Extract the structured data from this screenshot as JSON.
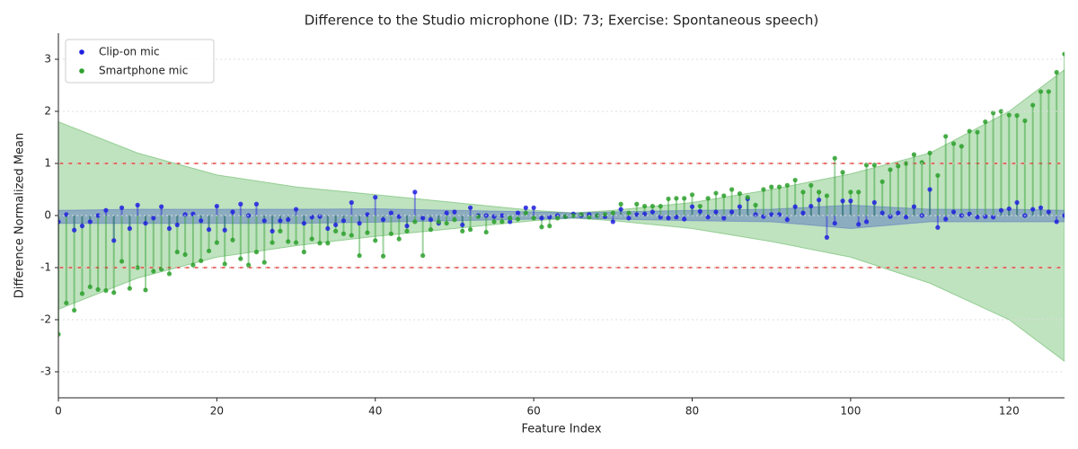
{
  "chart_data": {
    "type": "stem",
    "title": "Difference to the Studio microphone (ID: 73; Exercise: Spontaneous speech)",
    "x_label": "Feature Index",
    "y_label": "Difference Normalized Mean",
    "xlim": [
      0,
      127
    ],
    "ylim": [
      -3.5,
      3.5
    ],
    "xticks": [
      0,
      20,
      40,
      60,
      80,
      100,
      120
    ],
    "yticks": [
      -3,
      -2,
      -1,
      0,
      1,
      2,
      3
    ],
    "grid": true,
    "legend": "upper left",
    "hlines": [
      1,
      -1
    ],
    "hline_color": "#e8443a",
    "x": [
      0,
      1,
      2,
      3,
      4,
      5,
      6,
      7,
      8,
      9,
      10,
      11,
      12,
      13,
      14,
      15,
      16,
      17,
      18,
      19,
      20,
      21,
      22,
      23,
      24,
      25,
      26,
      27,
      28,
      29,
      30,
      31,
      32,
      33,
      34,
      35,
      36,
      37,
      38,
      39,
      40,
      41,
      42,
      43,
      44,
      45,
      46,
      47,
      48,
      49,
      50,
      51,
      52,
      53,
      54,
      55,
      56,
      57,
      58,
      59,
      60,
      61,
      62,
      63,
      64,
      65,
      66,
      67,
      68,
      69,
      70,
      71,
      72,
      73,
      74,
      75,
      76,
      77,
      78,
      79,
      80,
      81,
      82,
      83,
      84,
      85,
      86,
      87,
      88,
      89,
      90,
      91,
      92,
      93,
      94,
      95,
      96,
      97,
      98,
      99,
      100,
      101,
      102,
      103,
      104,
      105,
      106,
      107,
      108,
      109,
      110,
      111,
      112,
      113,
      114,
      115,
      116,
      117,
      118,
      119,
      120,
      121,
      122,
      123,
      124,
      125,
      126,
      127
    ],
    "bands": [
      {
        "color": "#2ca02c",
        "x": [
          0,
          10,
          20,
          30,
          40,
          50,
          60,
          65,
          70,
          80,
          90,
          100,
          110,
          120,
          127
        ],
        "upper": [
          1.8,
          1.2,
          0.78,
          0.55,
          0.4,
          0.25,
          0.1,
          0.05,
          0.1,
          0.25,
          0.5,
          0.8,
          1.2,
          2.0,
          2.8
        ],
        "lower": [
          -1.8,
          -1.2,
          -0.8,
          -0.58,
          -0.4,
          -0.25,
          -0.1,
          -0.05,
          -0.1,
          -0.25,
          -0.5,
          -0.8,
          -1.3,
          -2.0,
          -2.8
        ]
      },
      {
        "color": "#4060c0",
        "x": [
          0,
          10,
          20,
          30,
          40,
          50,
          60,
          65,
          70,
          80,
          90,
          100,
          110,
          120,
          127
        ],
        "upper": [
          0.1,
          0.12,
          0.12,
          0.12,
          0.13,
          0.1,
          0.07,
          0.05,
          0.07,
          0.1,
          0.12,
          0.2,
          0.12,
          0.12,
          0.1
        ],
        "lower": [
          -0.15,
          -0.15,
          -0.15,
          -0.15,
          -0.13,
          -0.1,
          -0.07,
          -0.05,
          -0.07,
          -0.1,
          -0.12,
          -0.25,
          -0.12,
          -0.12,
          -0.12
        ]
      }
    ],
    "series": [
      {
        "name": "Clip-on mic",
        "color": "#2020e0",
        "values": [
          -0.12,
          0.02,
          -0.28,
          -0.2,
          -0.12,
          0.0,
          0.1,
          -0.48,
          0.15,
          -0.25,
          0.2,
          -0.15,
          -0.05,
          0.17,
          -0.25,
          -0.18,
          0.02,
          0.03,
          -0.1,
          -0.27,
          0.18,
          -0.28,
          0.07,
          0.22,
          0.0,
          0.22,
          -0.1,
          -0.3,
          -0.1,
          -0.08,
          0.12,
          -0.15,
          -0.03,
          -0.02,
          -0.25,
          -0.18,
          -0.1,
          0.25,
          -0.15,
          0.02,
          0.35,
          -0.08,
          0.05,
          -0.02,
          -0.2,
          0.45,
          -0.05,
          -0.08,
          -0.15,
          0.05,
          0.07,
          -0.18,
          0.15,
          0.0,
          0.0,
          -0.02,
          0.0,
          -0.12,
          0.05,
          0.15,
          0.15,
          -0.05,
          -0.03,
          0.0,
          -0.02,
          0.03,
          0.0,
          0.02,
          0.0,
          -0.02,
          -0.12,
          0.12,
          -0.05,
          0.02,
          0.03,
          0.07,
          -0.03,
          -0.05,
          -0.03,
          -0.07,
          0.17,
          0.08,
          -0.03,
          0.07,
          -0.05,
          0.07,
          0.17,
          0.32,
          0.02,
          -0.02,
          0.02,
          0.02,
          -0.08,
          0.17,
          0.05,
          0.18,
          0.3,
          -0.42,
          -0.15,
          0.28,
          0.28,
          -0.17,
          -0.12,
          0.25,
          0.05,
          -0.02,
          0.05,
          -0.03,
          0.17,
          0.0,
          0.5,
          -0.23,
          -0.07,
          0.07,
          0.0,
          0.03,
          -0.03,
          -0.02,
          -0.03,
          0.1,
          0.13,
          0.25,
          0.0,
          0.12,
          0.15,
          0.07,
          -0.12,
          0.0
        ]
      },
      {
        "name": "Smartphone mic",
        "color": "#2ca02c",
        "values": [
          -2.28,
          -1.68,
          -1.82,
          -1.5,
          -1.37,
          -1.42,
          -1.44,
          -1.48,
          -0.88,
          -1.4,
          -1.0,
          -1.43,
          -1.07,
          -1.03,
          -1.12,
          -0.7,
          -0.75,
          -0.95,
          -0.87,
          -0.68,
          -0.52,
          -0.93,
          -0.47,
          -0.83,
          -0.95,
          -0.7,
          -0.9,
          -0.52,
          -0.3,
          -0.5,
          -0.52,
          -0.7,
          -0.45,
          -0.53,
          -0.53,
          -0.3,
          -0.35,
          -0.38,
          -0.77,
          -0.33,
          -0.48,
          -0.78,
          -0.35,
          -0.45,
          -0.3,
          -0.12,
          -0.77,
          -0.27,
          -0.12,
          -0.15,
          -0.08,
          -0.3,
          -0.27,
          -0.02,
          -0.32,
          -0.12,
          -0.12,
          -0.05,
          -0.07,
          0.05,
          -0.05,
          -0.22,
          -0.2,
          -0.05,
          -0.02,
          0.0,
          0.02,
          -0.03,
          0.0,
          0.02,
          0.05,
          0.22,
          0.05,
          0.22,
          0.18,
          0.18,
          0.18,
          0.32,
          0.33,
          0.33,
          0.4,
          0.18,
          0.33,
          0.43,
          0.38,
          0.5,
          0.42,
          0.35,
          0.2,
          0.5,
          0.55,
          0.55,
          0.58,
          0.68,
          0.45,
          0.58,
          0.45,
          0.38,
          1.1,
          0.83,
          0.45,
          0.45,
          0.97,
          0.97,
          0.65,
          0.88,
          0.95,
          1.0,
          1.17,
          1.02,
          1.2,
          0.77,
          1.52,
          1.38,
          1.33,
          1.62,
          1.6,
          1.8,
          1.97,
          2.0,
          1.93,
          1.92,
          1.82,
          2.12,
          2.38,
          2.38,
          2.75,
          3.1
        ]
      }
    ]
  }
}
